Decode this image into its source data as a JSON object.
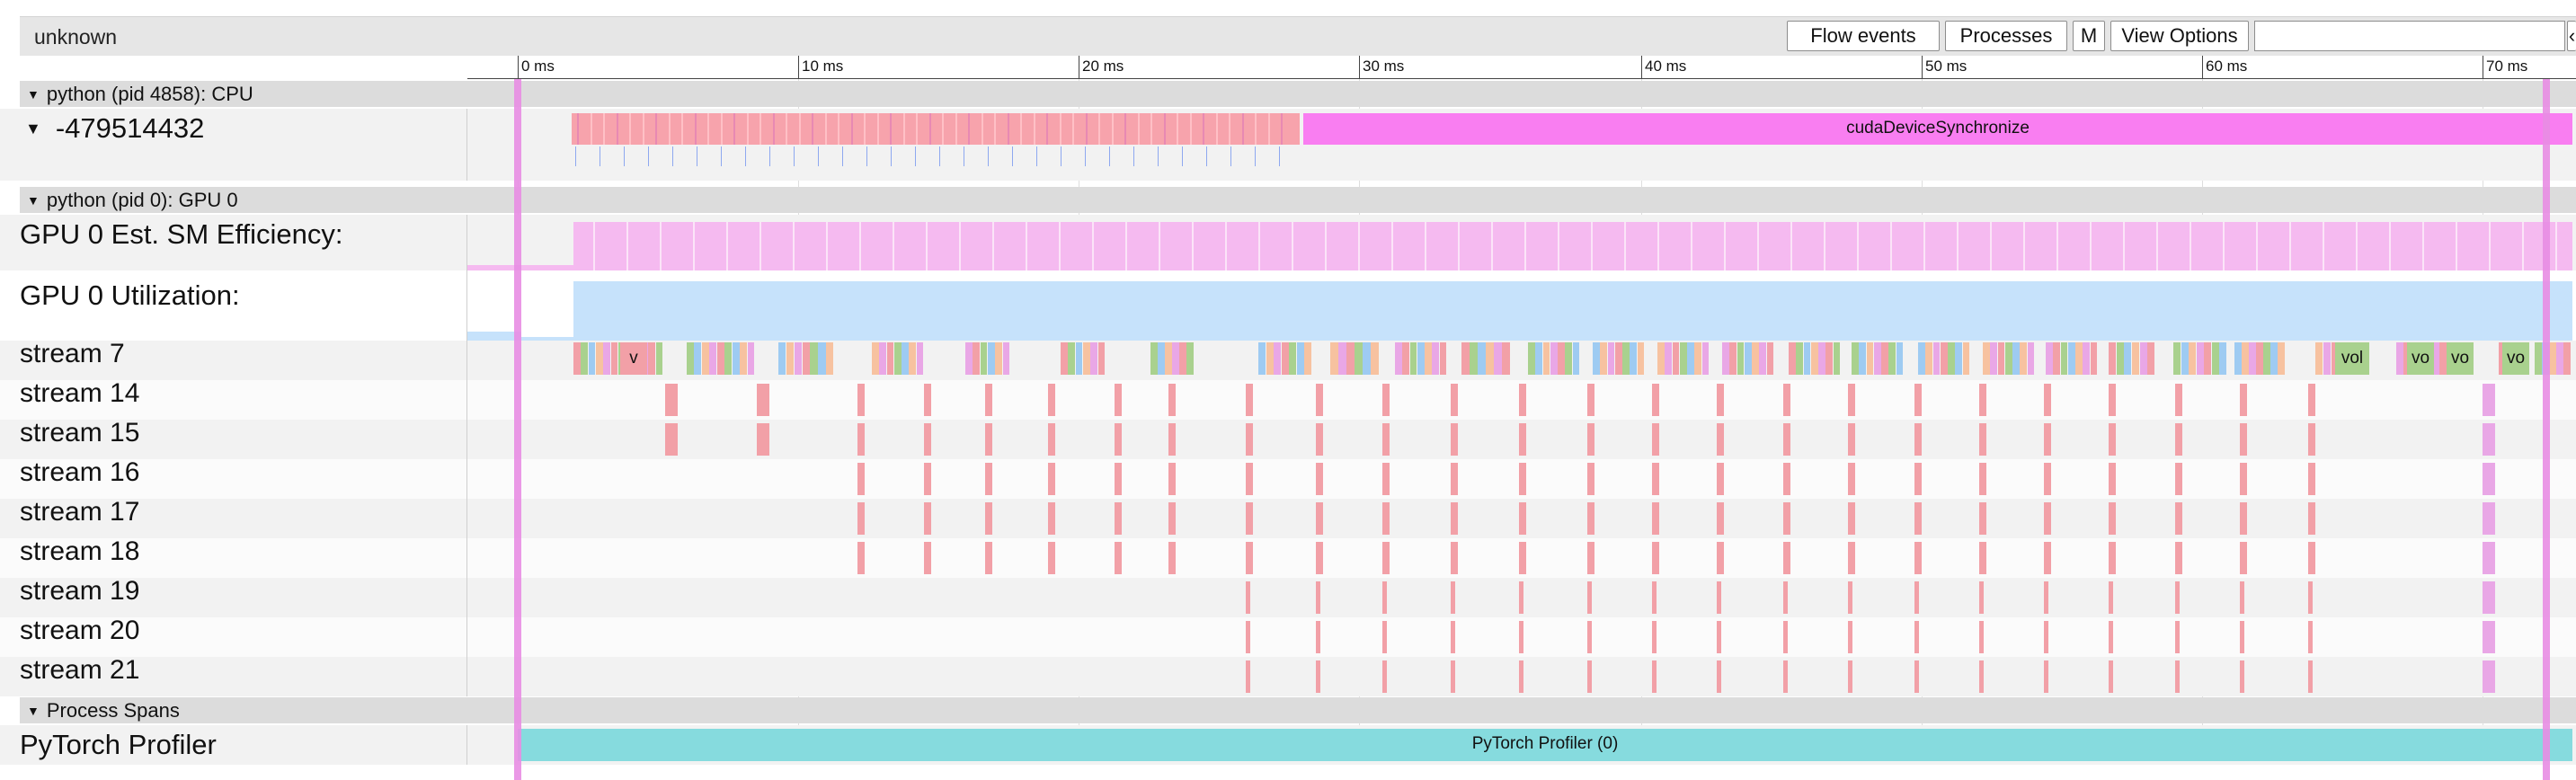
{
  "toolbar": {
    "title": "unknown",
    "flow_events": "Flow events",
    "processes": "Processes",
    "m": "M",
    "view_options": "View Options",
    "search_value": "",
    "more": "‹"
  },
  "ruler": {
    "ticks": [
      "0 ms",
      "10 ms",
      "20 ms",
      "30 ms",
      "40 ms",
      "50 ms",
      "60 ms",
      "70 ms"
    ]
  },
  "sections": {
    "cpu": "python (pid 4858): CPU",
    "gpu": "python (pid 0): GPU 0",
    "spans": "Process Spans"
  },
  "threads": {
    "cpu_thread": "-479514432",
    "cuda_sync": "cudaDeviceSynchronize"
  },
  "gpu_tracks": {
    "sm_efficiency": "GPU 0 Est. SM Efficiency:",
    "utilization": "GPU 0 Utilization:",
    "streams": [
      "stream 7",
      "stream 14",
      "stream 15",
      "stream 16",
      "stream 17",
      "stream 18",
      "stream 19",
      "stream 20",
      "stream 21"
    ],
    "stream7_labels": [
      "v",
      "vol",
      "vo",
      "vo",
      "vo"
    ]
  },
  "spans": {
    "label": "PyTorch Profiler",
    "bar": "PyTorch Profiler (0)"
  },
  "colors": {
    "cpu_ops": "#f7a3ac",
    "cuda_sync": "#f97ef1",
    "sm_eff": "#f5baf0",
    "util": "#c6e2fb",
    "kernel": "#f2a0a7",
    "vol": "#a9d18e",
    "profiler": "#86dbde",
    "marker": "#e88de3"
  }
}
